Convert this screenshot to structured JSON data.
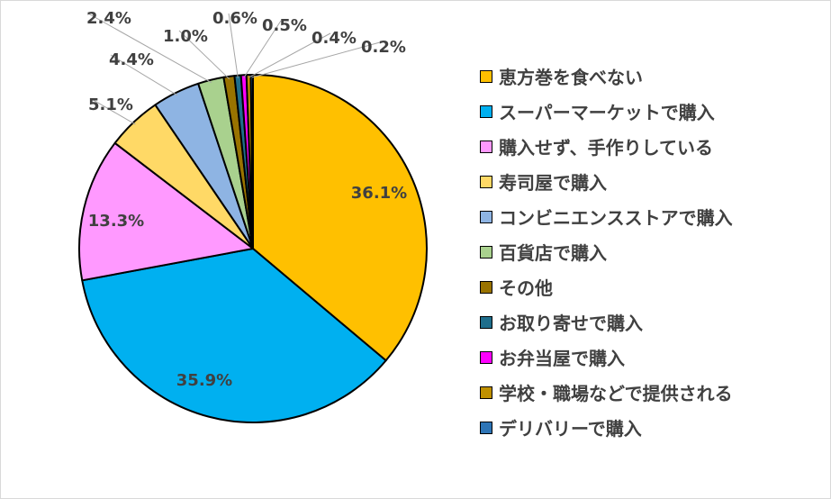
{
  "chart_data": {
    "type": "pie",
    "title": "",
    "categories": [
      "恵方巻を食べない",
      "スーパーマーケットで購入",
      "購入せず、手作りしている",
      "寿司屋で購入",
      "コンビニエンスストアで購入",
      "百貨店で購入",
      "その他",
      "お取り寄せで購入",
      "お弁当屋で購入",
      "学校・職場などで提供される",
      "デリバリーで購入"
    ],
    "values": [
      36.1,
      35.9,
      13.3,
      5.1,
      4.4,
      2.4,
      1.0,
      0.6,
      0.5,
      0.4,
      0.2
    ],
    "data_labels": [
      "36.1%",
      "35.9%",
      "13.3%",
      "5.1%",
      "4.4%",
      "2.4%",
      "1.0%",
      "0.6%",
      "0.5%",
      "0.4%",
      "0.2%"
    ],
    "colors": [
      "#FFC000",
      "#00B0F0",
      "#FF99FF",
      "#FFD966",
      "#8EB4E3",
      "#A9D18E",
      "#997300",
      "#1F6E8C",
      "#FF00FF",
      "#BF9000",
      "#2E75B6"
    ],
    "legend_position": "right"
  }
}
